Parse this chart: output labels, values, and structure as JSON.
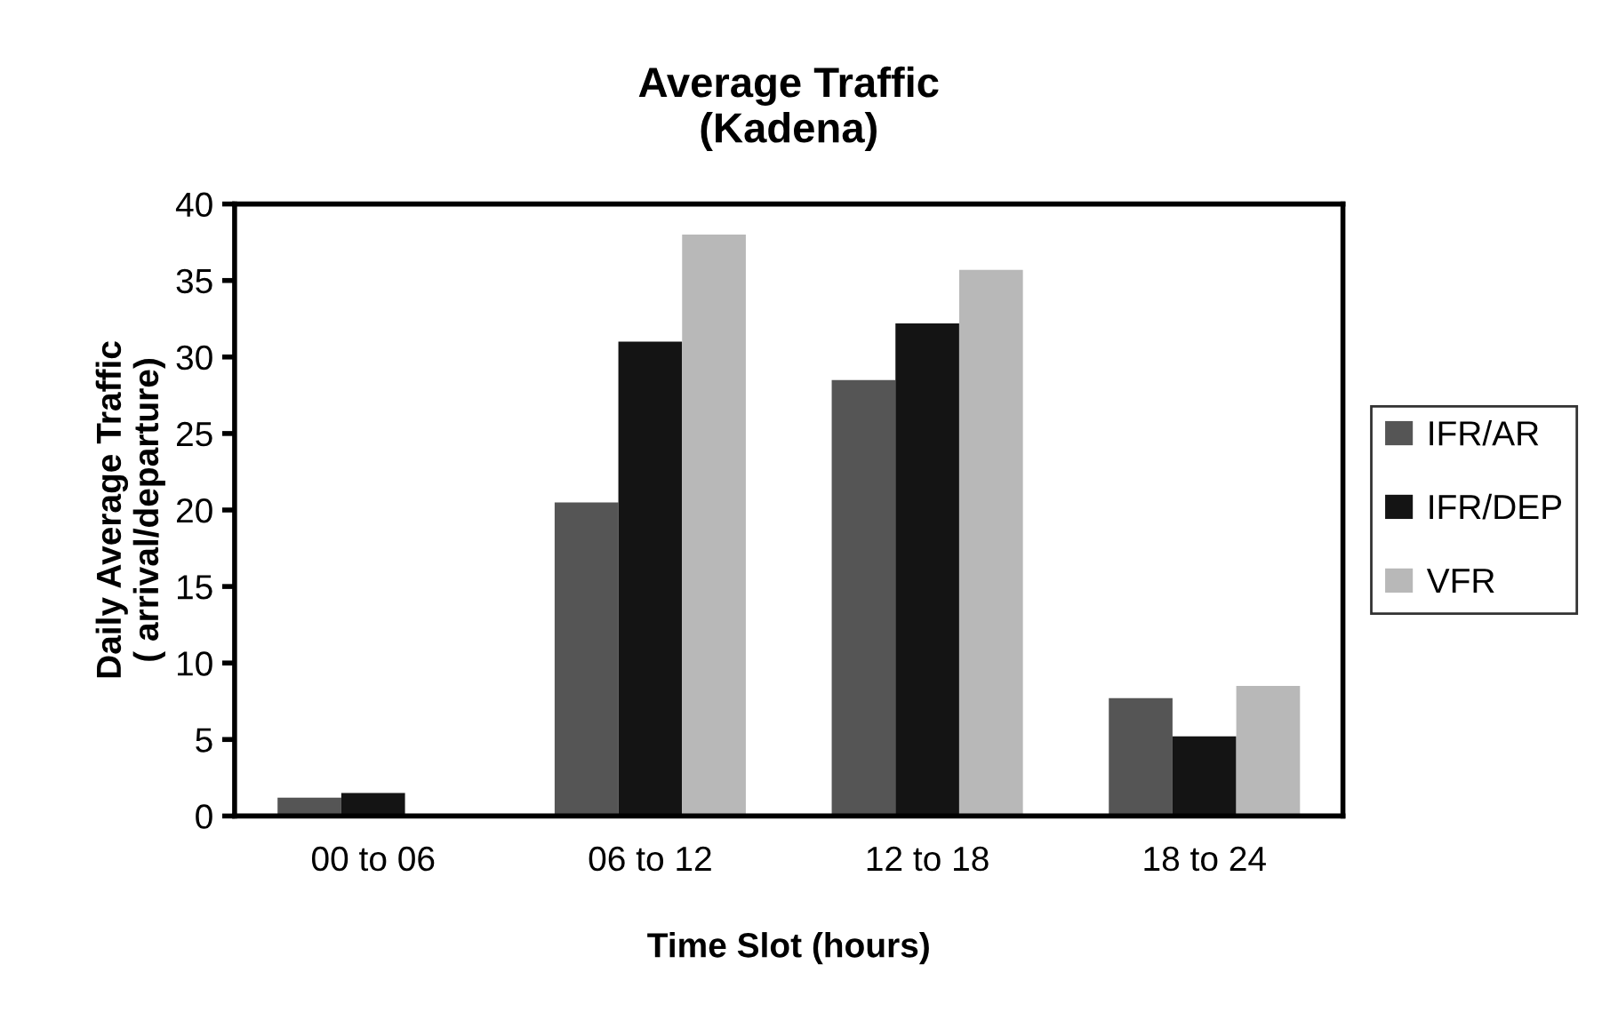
{
  "chart_data": {
    "type": "bar",
    "title": "Average Traffic\n(Kadena)",
    "xlabel": "Time Slot (hours)",
    "ylabel": "Daily Average Traffic\n( arrival/departure)",
    "categories": [
      "00 to 06",
      "06 to 12",
      "12 to 18",
      "18 to 24"
    ],
    "series": [
      {
        "name": "IFR/AR",
        "color": "#555555",
        "values": [
          1.2,
          20.5,
          28.5,
          7.7
        ]
      },
      {
        "name": "IFR/DEP",
        "color": "#141414",
        "values": [
          1.5,
          31,
          32.2,
          5.2
        ]
      },
      {
        "name": "VFR",
        "color": "#b8b8b8",
        "values": [
          0,
          38,
          35.7,
          8.5
        ]
      }
    ],
    "ylim": [
      0,
      40
    ],
    "yticks": [
      0,
      5,
      10,
      15,
      20,
      25,
      30,
      35,
      40
    ],
    "grid": false,
    "legend": "right"
  }
}
